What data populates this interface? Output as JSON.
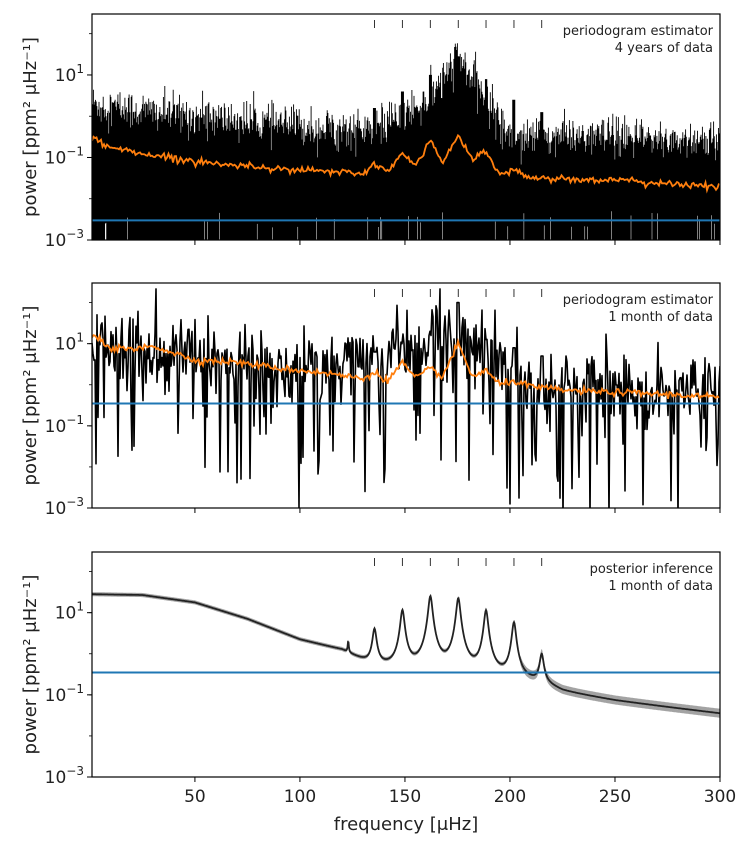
{
  "chart_data": [
    {
      "type": "line",
      "panel": "top",
      "annotation_lines": [
        "periodogram estimator",
        "4 years of data"
      ],
      "ylabel": "power [ppm² μHz⁻¹]",
      "yscale": "log",
      "ylim": [
        0.001,
        300
      ],
      "xlim": [
        1,
        300
      ],
      "yticks": [
        {
          "value": 0.001,
          "base": "10",
          "exp": "−3"
        },
        {
          "value": 0.1,
          "base": "10",
          "exp": "−1"
        },
        {
          "value": 10,
          "base": "10",
          "exp": "1"
        }
      ],
      "xtick_values": [
        50,
        100,
        150,
        200,
        250,
        300
      ],
      "marker_freqs": [
        135.5,
        148.8,
        162.1,
        175.4,
        188.6,
        201.9,
        215.1
      ],
      "series": [
        {
          "name": "periodogram",
          "color": "#000000",
          "kind": "noisy-fill",
          "upper_envelope_log10": [
            [
              1,
              0.3
            ],
            [
              20,
              0.15
            ],
            [
              50,
              0.0
            ],
            [
              100,
              -0.25
            ],
            [
              135,
              -0.35
            ],
            [
              162,
              0.4
            ],
            [
              175,
              1.45
            ],
            [
              200,
              -0.45
            ],
            [
              300,
              -0.6
            ]
          ]
        },
        {
          "name": "smoothed",
          "color": "#ff7f0e",
          "points": [
            [
              1,
              -0.55
            ],
            [
              10,
              -0.75
            ],
            [
              30,
              -0.95
            ],
            [
              60,
              -1.15
            ],
            [
              100,
              -1.3
            ],
            [
              130,
              -1.4
            ],
            [
              135.5,
              -1.15
            ],
            [
              142,
              -1.35
            ],
            [
              148.8,
              -0.9
            ],
            [
              155,
              -1.2
            ],
            [
              162.1,
              -0.6
            ],
            [
              168,
              -1.1
            ],
            [
              175.4,
              -0.45
            ],
            [
              182,
              -1.05
            ],
            [
              188.6,
              -0.85
            ],
            [
              195,
              -1.4
            ],
            [
              201.9,
              -1.3
            ],
            [
              210,
              -1.5
            ],
            [
              250,
              -1.55
            ],
            [
              300,
              -1.72
            ]
          ]
        },
        {
          "name": "noise level",
          "color": "#1f77b4",
          "constant": 0.003
        }
      ]
    },
    {
      "type": "line",
      "panel": "middle",
      "annotation_lines": [
        "periodogram estimator",
        "1 month of data"
      ],
      "ylabel": "power [ppm² μHz⁻¹]",
      "yscale": "log",
      "ylim": [
        0.001,
        300
      ],
      "xlim": [
        1,
        300
      ],
      "yticks": [
        {
          "value": 0.001,
          "base": "10",
          "exp": "−3"
        },
        {
          "value": 0.1,
          "base": "10",
          "exp": "−1"
        },
        {
          "value": 10,
          "base": "10",
          "exp": "1"
        }
      ],
      "xtick_values": [
        50,
        100,
        150,
        200,
        250,
        300
      ],
      "marker_freqs": [
        135.5,
        148.8,
        162.1,
        175.4,
        188.6,
        201.9,
        215.1
      ],
      "series": [
        {
          "name": "periodogram",
          "color": "#000000",
          "kind": "noisy-line",
          "center_log10": [
            [
              1,
              1.0
            ],
            [
              50,
              0.6
            ],
            [
              100,
              0.3
            ],
            [
              175.4,
              1.2
            ],
            [
              210,
              0.0
            ],
            [
              300,
              -0.2
            ]
          ]
        },
        {
          "name": "smoothed",
          "color": "#ff7f0e",
          "points": [
            [
              1,
              1.2
            ],
            [
              10,
              0.9
            ],
            [
              20,
              0.85
            ],
            [
              30,
              0.95
            ],
            [
              50,
              0.6
            ],
            [
              70,
              0.55
            ],
            [
              90,
              0.4
            ],
            [
              110,
              0.3
            ],
            [
              130,
              0.15
            ],
            [
              135.5,
              0.3
            ],
            [
              142,
              0.1
            ],
            [
              148.8,
              0.55
            ],
            [
              155,
              0.15
            ],
            [
              162.1,
              0.4
            ],
            [
              168,
              0.2
            ],
            [
              175.4,
              1.0
            ],
            [
              182,
              0.2
            ],
            [
              188.6,
              0.35
            ],
            [
              195,
              0.0
            ],
            [
              201.9,
              0.1
            ],
            [
              210,
              -0.05
            ],
            [
              230,
              -0.15
            ],
            [
              260,
              -0.2
            ],
            [
              300,
              -0.3
            ]
          ]
        },
        {
          "name": "noise level",
          "color": "#1f77b4",
          "constant": 0.35
        }
      ]
    },
    {
      "type": "line",
      "panel": "bottom",
      "annotation_lines": [
        "posterior inference",
        "1 month of data"
      ],
      "ylabel": "power [ppm² μHz⁻¹]",
      "xlabel": "frequency [μHz]",
      "yscale": "log",
      "ylim": [
        0.001,
        300
      ],
      "xlim": [
        1,
        300
      ],
      "yticks": [
        {
          "value": 0.001,
          "base": "10",
          "exp": "−3"
        },
        {
          "value": 0.1,
          "base": "10",
          "exp": "−1"
        },
        {
          "value": 10,
          "base": "10",
          "exp": "1"
        }
      ],
      "xtick_labels": [
        "50",
        "100",
        "150",
        "200",
        "250",
        "300"
      ],
      "xtick_values": [
        50,
        100,
        150,
        200,
        250,
        300
      ],
      "marker_freqs": [
        135.5,
        148.8,
        162.1,
        175.4,
        188.6,
        201.9,
        215.1
      ],
      "series": [
        {
          "name": "posterior median",
          "color": "#222222",
          "band_color": "#999999",
          "background_log10": [
            [
              1,
              1.45
            ],
            [
              25,
              1.43
            ],
            [
              50,
              1.25
            ],
            [
              75,
              0.85
            ],
            [
              100,
              0.35
            ],
            [
              120,
              0.1
            ],
            [
              135,
              -0.3
            ],
            [
              150,
              -0.45
            ],
            [
              175,
              -0.6
            ],
            [
              200,
              -0.7
            ],
            [
              215,
              -0.8
            ],
            [
              225,
              -1.0
            ],
            [
              250,
              -1.2
            ],
            [
              275,
              -1.35
            ],
            [
              300,
              -1.5
            ]
          ],
          "peaks": [
            {
              "freq": 135.5,
              "log10": 0.55
            },
            {
              "freq": 148.8,
              "log10": 1.05
            },
            {
              "freq": 162.1,
              "log10": 1.4
            },
            {
              "freq": 175.4,
              "log10": 1.35
            },
            {
              "freq": 188.6,
              "log10": 1.05
            },
            {
              "freq": 201.9,
              "log10": 0.75
            },
            {
              "freq": 215.1,
              "log10": -0.1
            },
            {
              "freq": 123,
              "log10": 0.0
            }
          ]
        },
        {
          "name": "noise level",
          "color": "#1f77b4",
          "constant": 0.35
        }
      ]
    }
  ]
}
